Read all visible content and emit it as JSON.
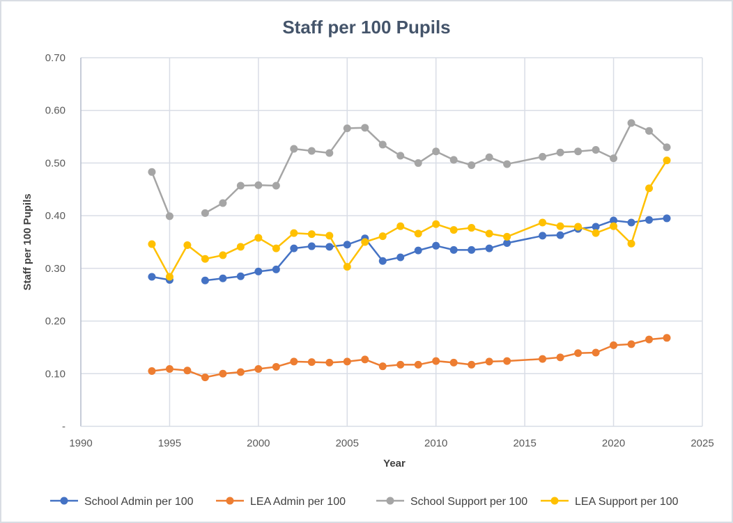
{
  "chart_data": {
    "type": "line",
    "title": "Staff per 100 Pupils",
    "xlabel": "Year",
    "ylabel": "Staff per 100 Pupils",
    "xlim": [
      1990,
      2025
    ],
    "ylim": [
      0,
      0.7
    ],
    "x_ticks": [
      "1990",
      "1995",
      "2000",
      "2005",
      "2010",
      "2015",
      "2020",
      "2025"
    ],
    "x_tick_values": [
      1990,
      1995,
      2000,
      2005,
      2010,
      2015,
      2020,
      2025
    ],
    "y_ticks": [
      "-",
      "0.10",
      "0.20",
      "0.30",
      "0.40",
      "0.50",
      "0.60",
      "0.70"
    ],
    "y_tick_values": [
      0,
      0.1,
      0.2,
      0.3,
      0.4,
      0.5,
      0.6,
      0.7
    ],
    "grid": true,
    "legend_position": "bottom",
    "series": [
      {
        "name": "School Admin per 100",
        "color": "#4472c4",
        "points": [
          [
            1994,
            0.284
          ],
          [
            1995,
            0.278
          ],
          [
            1997,
            0.277
          ],
          [
            1998,
            0.281
          ],
          [
            1999,
            0.285
          ],
          [
            2000,
            0.294
          ],
          [
            2001,
            0.298
          ],
          [
            2002,
            0.338
          ],
          [
            2003,
            0.342
          ],
          [
            2004,
            0.341
          ],
          [
            2005,
            0.345
          ],
          [
            2006,
            0.357
          ],
          [
            2007,
            0.314
          ],
          [
            2008,
            0.321
          ],
          [
            2009,
            0.334
          ],
          [
            2010,
            0.343
          ],
          [
            2011,
            0.335
          ],
          [
            2012,
            0.335
          ],
          [
            2013,
            0.338
          ],
          [
            2014,
            0.348
          ],
          [
            2016,
            0.362
          ],
          [
            2017,
            0.363
          ],
          [
            2018,
            0.375
          ],
          [
            2019,
            0.379
          ],
          [
            2020,
            0.391
          ],
          [
            2021,
            0.387
          ],
          [
            2022,
            0.392
          ],
          [
            2023,
            0.395
          ]
        ]
      },
      {
        "name": "LEA Admin per 100",
        "color": "#ed7d31",
        "points": [
          [
            1994,
            0.105
          ],
          [
            1995,
            0.109
          ],
          [
            1996,
            0.106
          ],
          [
            1997,
            0.093
          ],
          [
            1998,
            0.1
          ],
          [
            1999,
            0.103
          ],
          [
            2000,
            0.109
          ],
          [
            2001,
            0.113
          ],
          [
            2002,
            0.123
          ],
          [
            2003,
            0.122
          ],
          [
            2004,
            0.121
          ],
          [
            2005,
            0.123
          ],
          [
            2006,
            0.127
          ],
          [
            2007,
            0.114
          ],
          [
            2008,
            0.117
          ],
          [
            2009,
            0.117
          ],
          [
            2010,
            0.124
          ],
          [
            2011,
            0.121
          ],
          [
            2012,
            0.117
          ],
          [
            2013,
            0.123
          ],
          [
            2014,
            0.124
          ],
          [
            2016,
            0.128
          ],
          [
            2017,
            0.131
          ],
          [
            2018,
            0.139
          ],
          [
            2019,
            0.14
          ],
          [
            2020,
            0.154
          ],
          [
            2021,
            0.156
          ],
          [
            2022,
            0.165
          ],
          [
            2023,
            0.168
          ]
        ]
      },
      {
        "name": "School Support per 100",
        "color": "#a5a5a5",
        "points": [
          [
            1994,
            0.483
          ],
          [
            1995,
            0.399
          ],
          [
            1997,
            0.405
          ],
          [
            1998,
            0.424
          ],
          [
            1999,
            0.457
          ],
          [
            2000,
            0.458
          ],
          [
            2001,
            0.457
          ],
          [
            2002,
            0.527
          ],
          [
            2003,
            0.523
          ],
          [
            2004,
            0.519
          ],
          [
            2005,
            0.566
          ],
          [
            2006,
            0.567
          ],
          [
            2007,
            0.535
          ],
          [
            2008,
            0.514
          ],
          [
            2009,
            0.5
          ],
          [
            2010,
            0.522
          ],
          [
            2011,
            0.506
          ],
          [
            2012,
            0.496
          ],
          [
            2013,
            0.511
          ],
          [
            2014,
            0.498
          ],
          [
            2016,
            0.512
          ],
          [
            2017,
            0.52
          ],
          [
            2018,
            0.522
          ],
          [
            2019,
            0.525
          ],
          [
            2020,
            0.509
          ],
          [
            2021,
            0.576
          ],
          [
            2022,
            0.561
          ],
          [
            2023,
            0.53
          ]
        ]
      },
      {
        "name": "LEA Support per 100",
        "color": "#ffc000",
        "points": [
          [
            1994,
            0.346
          ],
          [
            1995,
            0.284
          ],
          [
            1996,
            0.344
          ],
          [
            1997,
            0.318
          ],
          [
            1998,
            0.325
          ],
          [
            1999,
            0.341
          ],
          [
            2000,
            0.358
          ],
          [
            2001,
            0.338
          ],
          [
            2002,
            0.367
          ],
          [
            2003,
            0.365
          ],
          [
            2004,
            0.362
          ],
          [
            2005,
            0.303
          ],
          [
            2006,
            0.35
          ],
          [
            2007,
            0.361
          ],
          [
            2008,
            0.38
          ],
          [
            2009,
            0.366
          ],
          [
            2010,
            0.384
          ],
          [
            2011,
            0.373
          ],
          [
            2012,
            0.377
          ],
          [
            2013,
            0.366
          ],
          [
            2014,
            0.36
          ],
          [
            2016,
            0.387
          ],
          [
            2017,
            0.38
          ],
          [
            2018,
            0.379
          ],
          [
            2019,
            0.367
          ],
          [
            2020,
            0.38
          ],
          [
            2021,
            0.347
          ],
          [
            2022,
            0.452
          ],
          [
            2023,
            0.505
          ]
        ]
      }
    ]
  }
}
